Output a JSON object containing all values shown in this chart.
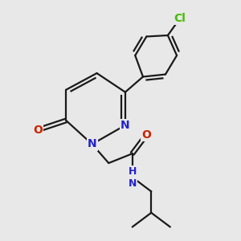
{
  "bg_color": "#e8e8e8",
  "bond_color": "#1a1a1a",
  "nitrogen_color": "#2222cc",
  "oxygen_color": "#cc2200",
  "chlorine_color": "#44bb00",
  "line_width": 1.6,
  "font_size_atom": 10,
  "fig_size": [
    3.0,
    3.0
  ],
  "dpi": 100,
  "xlim": [
    0,
    10
  ],
  "ylim": [
    0,
    10
  ],
  "ring_dbo": 0.075,
  "chain_dbo": 0.08
}
